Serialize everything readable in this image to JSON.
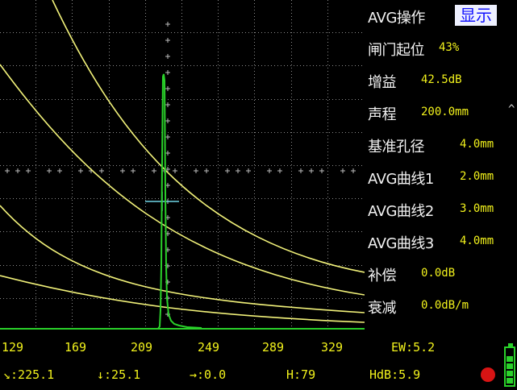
{
  "menu": {
    "items": [
      {
        "label": "AVG操作",
        "value": "显示",
        "highlight": true
      },
      {
        "label": "闸门起位",
        "value": "43%"
      },
      {
        "label": "增益",
        "value": "42.5dB"
      },
      {
        "label": "声程",
        "value": "200.0mm",
        "caret": "^"
      },
      {
        "label": "基准孔径",
        "value": "4.0mm"
      },
      {
        "label": "AVG曲线1",
        "value": "2.0mm"
      },
      {
        "label": "AVG曲线2",
        "value": "3.0mm"
      },
      {
        "label": "AVG曲线3",
        "value": "4.0mm"
      },
      {
        "label": "补偿",
        "value": "0.0dB"
      },
      {
        "label": "衰减",
        "value": "0.0dB/m"
      }
    ]
  },
  "axis": {
    "ticks": [
      "129",
      "169",
      "209",
      "249",
      "289",
      "329"
    ]
  },
  "status": {
    "ew": "EW:5.2",
    "slant": ":225.1",
    "depth": ":25.1",
    "horizontal": ":0.0",
    "height": "H:79",
    "hdb": "HdB:5.9"
  },
  "colors": {
    "echo": "#2ad12a",
    "curves": "#f2f27a",
    "gate": "#6fd6e6",
    "text": "#f2f21c",
    "grid": "#8a8a8a",
    "highlight_bg": "#eef0ff",
    "highlight_fg": "#1212ff"
  },
  "icons": {
    "slant": "slant-arrow-icon",
    "depth": "down-arrow-icon",
    "horizontal": "right-arrow-icon",
    "indicator": "red-dot-icon",
    "battery": "battery-icon"
  }
}
